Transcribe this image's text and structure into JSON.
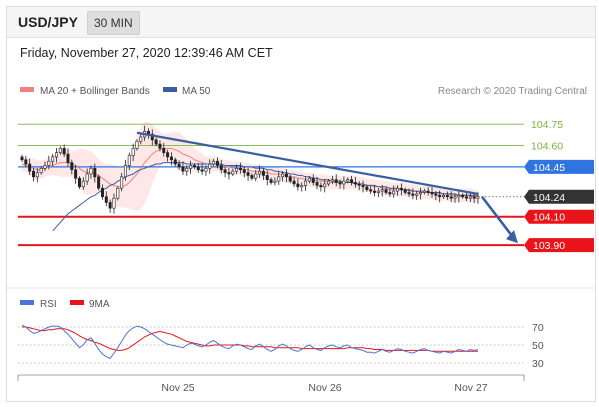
{
  "header": {
    "symbol": "USD/JPY",
    "timeframe": "30 MIN",
    "timestamp": "Friday, November 27, 2020 12:39:46 AM CET"
  },
  "legend": {
    "ma20_label": "MA 20 + Bollinger Bands",
    "ma50_label": "MA 50",
    "credit": "Research © 2020 Trading Central",
    "rsi_label": "RSI",
    "ma9_label": "9MA"
  },
  "colors": {
    "ma20": "#f08080",
    "ma50": "#3a5fa0",
    "band_fill": "#fde4e4",
    "resistance": "#2f74e0",
    "support": "#e8141a",
    "target_green": "#7cb342",
    "trendline": "#3a5fa0",
    "current_price_bg": "#333333",
    "rsi": "#4f74d6",
    "ma9": "#e8141a"
  },
  "chart_data": [
    {
      "type": "candlestick",
      "title": "",
      "xlabel": "",
      "ylabel": "",
      "ylim": [
        103.62,
        104.92
      ],
      "x_ticks": [
        "Nov 25",
        "Nov 26",
        "Nov 27"
      ],
      "levels": [
        {
          "value": 104.75,
          "label": "104.75",
          "kind": "target"
        },
        {
          "value": 104.6,
          "label": "104.60",
          "kind": "target"
        },
        {
          "value": 104.45,
          "label": "104.45",
          "kind": "resistance"
        },
        {
          "value": 104.24,
          "label": "104.24",
          "kind": "current"
        },
        {
          "value": 104.1,
          "label": "104.10",
          "kind": "support"
        },
        {
          "value": 103.9,
          "label": "103.90",
          "kind": "support"
        }
      ],
      "trendline": {
        "from_value": 104.69,
        "to_value": 104.26
      },
      "forecast_arrow": {
        "from_value": 104.24,
        "to_value": 103.9
      },
      "close": [
        104.5,
        104.47,
        104.42,
        104.38,
        104.41,
        104.44,
        104.46,
        104.49,
        104.52,
        104.55,
        104.58,
        104.54,
        104.48,
        104.43,
        104.37,
        104.31,
        104.35,
        104.4,
        104.44,
        104.38,
        104.3,
        104.24,
        104.2,
        104.16,
        104.23,
        104.3,
        104.38,
        104.46,
        104.53,
        104.58,
        104.63,
        104.66,
        104.7,
        104.68,
        104.64,
        104.61,
        104.58,
        104.55,
        104.52,
        104.5,
        104.47,
        104.45,
        104.42,
        104.44,
        104.46,
        104.45,
        104.43,
        104.42,
        104.44,
        104.47,
        104.49,
        104.46,
        104.43,
        104.41,
        104.4,
        104.42,
        104.44,
        104.43,
        104.41,
        104.39,
        104.37,
        104.4,
        104.42,
        104.39,
        104.36,
        104.34,
        104.35,
        104.38,
        104.4,
        104.38,
        104.35,
        104.33,
        104.31,
        104.32,
        104.35,
        104.37,
        104.34,
        104.32,
        104.31,
        104.33,
        104.35,
        104.36,
        104.34,
        104.33,
        104.35,
        104.36,
        104.34,
        104.33,
        104.32,
        104.31,
        104.29,
        104.28,
        104.27,
        104.28,
        104.29,
        104.27,
        104.26,
        104.28,
        104.3,
        104.29,
        104.27,
        104.26,
        104.25,
        104.26,
        104.27,
        104.28,
        104.27,
        104.26,
        104.25,
        104.24,
        104.25,
        104.24,
        104.23,
        104.24,
        104.25,
        104.24,
        104.23,
        104.24,
        104.23,
        104.24
      ],
      "series": [
        {
          "name": "MA 20 + Bollinger Bands",
          "values": [
            104.47,
            104.46,
            104.45,
            104.44,
            104.43,
            104.43,
            104.44,
            104.45,
            104.46,
            104.47,
            104.48,
            104.48,
            104.48,
            104.47,
            104.46,
            104.44,
            104.42,
            104.41,
            104.41,
            104.4,
            104.39,
            104.37,
            104.35,
            104.33,
            104.32,
            104.31,
            104.31,
            104.32,
            104.34,
            104.37,
            104.4,
            104.44,
            104.48,
            104.51,
            104.54,
            104.56,
            104.57,
            104.58,
            104.58,
            104.58,
            104.57,
            104.56,
            104.54,
            104.53,
            104.52,
            104.5,
            104.49,
            104.48,
            104.47,
            104.47,
            104.47,
            104.47,
            104.46,
            104.45,
            104.45,
            104.44,
            104.44,
            104.44,
            104.43,
            104.43,
            104.42,
            104.42,
            104.42,
            104.41,
            104.41,
            104.4,
            104.4,
            104.4,
            104.39,
            104.39,
            104.38,
            104.38,
            104.37,
            104.37,
            104.36,
            104.36,
            104.36,
            104.35,
            104.35,
            104.35,
            104.34,
            104.34,
            104.34,
            104.34,
            104.34,
            104.34,
            104.34,
            104.34,
            104.33,
            104.33,
            104.32,
            104.32,
            104.31,
            104.31,
            104.3,
            104.3,
            104.29,
            104.29,
            104.29,
            104.29,
            104.29,
            104.28,
            104.28,
            104.28,
            104.27,
            104.27,
            104.27,
            104.27,
            104.26,
            104.26,
            104.26,
            104.26,
            104.25,
            104.25,
            104.25,
            104.25,
            104.25,
            104.25,
            104.24,
            104.24
          ]
        },
        {
          "name": "MA 50",
          "values": [
            null,
            null,
            null,
            null,
            null,
            null,
            null,
            null,
            104.0,
            104.03,
            104.06,
            104.09,
            104.12,
            104.14,
            104.16,
            104.18,
            104.2,
            104.22,
            104.24,
            104.25,
            104.27,
            104.29,
            104.3,
            104.32,
            104.33,
            104.35,
            104.36,
            104.38,
            104.39,
            104.4,
            104.42,
            104.43,
            104.44,
            104.45,
            104.46,
            104.47,
            104.47,
            104.48,
            104.48,
            104.48,
            104.48,
            104.48,
            104.48,
            104.47,
            104.47,
            104.47,
            104.47,
            104.47,
            104.47,
            104.47,
            104.47,
            104.47,
            104.47,
            104.46,
            104.46,
            104.46,
            104.46,
            104.46,
            104.45,
            104.45,
            104.45,
            104.44,
            104.44,
            104.44,
            104.43,
            104.43,
            104.42,
            104.42,
            104.41,
            104.41,
            104.4,
            104.4,
            104.39,
            104.39,
            104.38,
            104.38,
            104.37,
            104.37,
            104.36,
            104.36,
            104.36,
            104.35,
            104.35,
            104.35,
            104.34,
            104.34,
            104.34,
            104.33,
            104.33,
            104.33,
            104.32,
            104.32,
            104.32,
            104.31,
            104.31,
            104.31,
            104.3,
            104.3,
            104.3,
            104.29,
            104.29,
            104.29,
            104.28,
            104.28,
            104.28,
            104.28,
            104.27,
            104.27,
            104.27,
            104.27,
            104.26,
            104.26,
            104.26,
            104.26,
            104.25,
            104.25,
            104.25,
            104.25,
            104.25,
            104.25
          ]
        }
      ]
    },
    {
      "type": "line",
      "title": "",
      "xlabel": "",
      "ylabel": "",
      "ylim": [
        20,
        80
      ],
      "y_ticks": [
        70,
        50,
        30
      ],
      "series": [
        {
          "name": "RSI",
          "values": [
            72,
            70,
            66,
            63,
            64,
            66,
            68,
            70,
            71,
            71,
            70,
            66,
            62,
            57,
            52,
            47,
            50,
            56,
            58,
            52,
            45,
            40,
            37,
            35,
            41,
            47,
            54,
            61,
            66,
            69,
            71,
            70,
            68,
            65,
            62,
            59,
            56,
            53,
            51,
            50,
            49,
            48,
            47,
            50,
            52,
            51,
            49,
            48,
            50,
            53,
            55,
            52,
            49,
            47,
            46,
            49,
            51,
            50,
            48,
            46,
            45,
            49,
            51,
            48,
            45,
            43,
            45,
            49,
            51,
            49,
            46,
            44,
            43,
            45,
            48,
            50,
            47,
            45,
            44,
            47,
            49,
            50,
            48,
            47,
            49,
            50,
            47,
            46,
            45,
            44,
            42,
            42,
            41,
            43,
            45,
            43,
            42,
            44,
            46,
            45,
            43,
            42,
            41,
            43,
            45,
            46,
            44,
            43,
            42,
            41,
            43,
            42,
            41,
            43,
            45,
            44,
            43,
            45,
            44,
            45
          ]
        },
        {
          "name": "9MA",
          "values": [
            70,
            70,
            69,
            68,
            67,
            66,
            66,
            67,
            67,
            68,
            68,
            68,
            67,
            65,
            63,
            60,
            58,
            56,
            55,
            53,
            52,
            50,
            48,
            46,
            45,
            44,
            44,
            45,
            47,
            50,
            53,
            56,
            59,
            61,
            63,
            64,
            65,
            64,
            63,
            62,
            60,
            58,
            56,
            54,
            53,
            52,
            51,
            50,
            49,
            49,
            50,
            50,
            50,
            50,
            50,
            50,
            50,
            50,
            49,
            49,
            48,
            48,
            48,
            48,
            48,
            48,
            47,
            47,
            47,
            47,
            47,
            47,
            47,
            46,
            46,
            46,
            46,
            46,
            46,
            46,
            46,
            46,
            46,
            46,
            46,
            47,
            47,
            47,
            47,
            47,
            46,
            46,
            45,
            45,
            45,
            44,
            44,
            44,
            44,
            44,
            44,
            44,
            44,
            44,
            44,
            44,
            44,
            43,
            43,
            43,
            43,
            43,
            43,
            43,
            43,
            43,
            43,
            43,
            43,
            43
          ]
        }
      ]
    }
  ]
}
